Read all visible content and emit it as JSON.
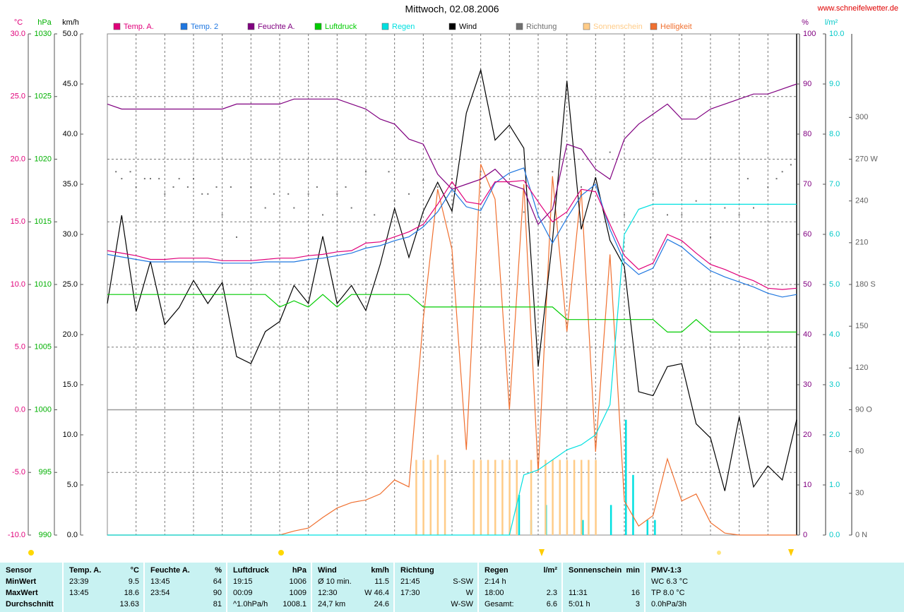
{
  "site": "www.schneifelwetter.de",
  "chart_data": {
    "type": "line",
    "title": "Mittwoch, 02.08.2006",
    "xlim": [
      0,
      24
    ],
    "xticks": [
      0,
      1,
      2,
      3,
      4,
      5,
      6,
      7,
      8,
      9,
      10,
      11,
      12,
      13,
      14,
      15,
      16,
      17,
      18,
      19,
      20,
      21,
      22,
      23,
      24
    ],
    "x": [
      0,
      0.5,
      1,
      1.5,
      2,
      2.5,
      3,
      3.5,
      4,
      4.5,
      5,
      5.5,
      6,
      6.5,
      7,
      7.5,
      8,
      8.5,
      9,
      9.5,
      10,
      10.5,
      11,
      11.5,
      12,
      12.5,
      13,
      13.5,
      14,
      14.5,
      15,
      15.5,
      16,
      16.5,
      17,
      17.5,
      18,
      18.5,
      19,
      19.5,
      20,
      20.5,
      21,
      21.5,
      22,
      22.5,
      23,
      23.5,
      24
    ],
    "axes": {
      "temp": {
        "unit": "°C",
        "side": "left",
        "color": "#e0007a",
        "ylim": [
          -10,
          30
        ],
        "grid": true,
        "refline": 0,
        "yticks": [
          {
            "value": -10,
            "label": "-10.0"
          },
          {
            "value": -5,
            "label": "-5.0"
          },
          {
            "value": 0,
            "label": "0.0"
          },
          {
            "value": 5,
            "label": "5.0"
          },
          {
            "value": 10,
            "label": "10.0"
          },
          {
            "value": 15,
            "label": "15.0"
          },
          {
            "value": 20,
            "label": "20.0"
          },
          {
            "value": 25,
            "label": "25.0"
          },
          {
            "value": 30,
            "label": "30.0"
          }
        ]
      },
      "hpa": {
        "unit": "hPa",
        "side": "left",
        "color": "#00b000",
        "ylim": [
          990,
          1030
        ],
        "yticks": [
          990,
          995,
          1000,
          1005,
          1010,
          1015,
          1020,
          1025,
          1030
        ]
      },
      "kmh": {
        "unit": "km/h",
        "side": "left",
        "color": "#000000",
        "ylim": [
          0,
          50
        ],
        "yticks": [
          {
            "value": 0,
            "label": "0.0"
          },
          {
            "value": 5,
            "label": "5.0"
          },
          {
            "value": 10,
            "label": "10.0"
          },
          {
            "value": 15,
            "label": "15.0"
          },
          {
            "value": 20,
            "label": "20.0"
          },
          {
            "value": 25,
            "label": "25.0"
          },
          {
            "value": 30,
            "label": "30.0"
          },
          {
            "value": 35,
            "label": "35.0"
          },
          {
            "value": 40,
            "label": "40.0"
          },
          {
            "value": 45,
            "label": "45.0"
          },
          {
            "value": 50,
            "label": "50.0"
          }
        ]
      },
      "pct": {
        "unit": "%",
        "side": "right",
        "color": "#800080",
        "ylim": [
          0,
          100
        ],
        "yticks": [
          0,
          10,
          20,
          30,
          40,
          50,
          60,
          70,
          80,
          90,
          100
        ]
      },
      "rain": {
        "unit": "l/m²",
        "side": "right",
        "color": "#00c8c8",
        "ylim": [
          0,
          10
        ],
        "yticks": [
          {
            "value": 0,
            "label": "0.0"
          },
          {
            "value": 1,
            "label": "1.0"
          },
          {
            "value": 2,
            "label": "2.0"
          },
          {
            "value": 3,
            "label": "3.0"
          },
          {
            "value": 4,
            "label": "4.0"
          },
          {
            "value": 5,
            "label": "5.0"
          },
          {
            "value": 6,
            "label": "6.0"
          },
          {
            "value": 7,
            "label": "7.0"
          },
          {
            "value": 8,
            "label": "8.0"
          },
          {
            "value": 9,
            "label": "9.0"
          },
          {
            "value": 10,
            "label": "10.0"
          }
        ]
      },
      "dir": {
        "side": "right",
        "color": "#606060",
        "ylim": [
          0,
          360
        ],
        "yticks": [
          {
            "value": 0,
            "label": "0  N"
          },
          30,
          60,
          {
            "value": 90,
            "label": "90  O"
          },
          120,
          150,
          {
            "value": 180,
            "label": "180 S"
          },
          210,
          240,
          {
            "value": 270,
            "label": "270 W"
          },
          300
        ]
      }
    },
    "series": [
      {
        "name": "Temp. A.",
        "kind": "line",
        "axis": "temp",
        "color": "#e0007a",
        "values": [
          12.7,
          12.5,
          12.3,
          12.0,
          12.0,
          12.1,
          12.1,
          12.1,
          11.9,
          11.9,
          11.9,
          12.0,
          12.1,
          12.1,
          12.3,
          12.4,
          12.6,
          12.7,
          13.3,
          13.4,
          13.8,
          14.2,
          14.8,
          16.4,
          18.2,
          16.6,
          16.4,
          18.2,
          18.2,
          18.3,
          16.6,
          15.0,
          15.8,
          17.6,
          17.4,
          14.8,
          12.3,
          11.2,
          11.7,
          14.0,
          13.5,
          12.5,
          11.6,
          11.2,
          10.7,
          10.3,
          9.7,
          9.6,
          9.7
        ]
      },
      {
        "name": "Temp. 2",
        "kind": "line",
        "axis": "temp",
        "color": "#1f77e0",
        "values": [
          12.4,
          12.2,
          12.0,
          11.8,
          11.8,
          11.8,
          11.8,
          11.8,
          11.7,
          11.7,
          11.7,
          11.8,
          11.8,
          11.8,
          12.0,
          12.1,
          12.3,
          12.5,
          12.9,
          13.1,
          13.5,
          13.8,
          14.6,
          15.8,
          17.6,
          16.2,
          15.9,
          18.1,
          18.9,
          19.3,
          15.5,
          13.3,
          15.3,
          17.1,
          18.0,
          14.4,
          11.8,
          10.8,
          11.3,
          13.6,
          13.0,
          12.0,
          11.1,
          10.6,
          10.2,
          9.8,
          9.3,
          9.0,
          9.2
        ]
      },
      {
        "name": "Feuchte A.",
        "kind": "line",
        "axis": "pct",
        "color": "#800080",
        "values": [
          86,
          85,
          85,
          85,
          85,
          85,
          85,
          85,
          85,
          86,
          86,
          86,
          86,
          87,
          87,
          87,
          87,
          86,
          85,
          83,
          82,
          79,
          78,
          72,
          69,
          70,
          71,
          73,
          70,
          69,
          62,
          65,
          78,
          77,
          73,
          71,
          79,
          82,
          84,
          86,
          83,
          83,
          85,
          86,
          87,
          88,
          88,
          89,
          90
        ]
      },
      {
        "name": "Luftdruck",
        "kind": "line",
        "axis": "hpa",
        "color": "#00cc00",
        "values": [
          1009.2,
          1009.2,
          1009.2,
          1009.2,
          1009.2,
          1009.2,
          1009.2,
          1009.2,
          1009.2,
          1009.2,
          1009.2,
          1009.2,
          1008.2,
          1008.7,
          1008.2,
          1009.2,
          1008.2,
          1009.2,
          1009.2,
          1009.2,
          1009.2,
          1009.2,
          1008.2,
          1008.2,
          1008.2,
          1008.2,
          1008.2,
          1008.2,
          1008.2,
          1008.2,
          1008.2,
          1008.2,
          1007.2,
          1007.2,
          1007.2,
          1007.2,
          1007.2,
          1007.2,
          1007.2,
          1006.2,
          1006.2,
          1007.2,
          1006.2,
          1006.2,
          1006.2,
          1006.2,
          1006.2,
          1006.2,
          1006.2
        ]
      },
      {
        "name": "Regen",
        "kind": "line",
        "axis": "rain",
        "color": "#00e0e0",
        "values": [
          0,
          0,
          0,
          0,
          0,
          0,
          0,
          0,
          0,
          0,
          0,
          0,
          0,
          0,
          0,
          0,
          0,
          0,
          0,
          0,
          0,
          0,
          0,
          0,
          0,
          0,
          0,
          0,
          0,
          1.2,
          1.3,
          1.5,
          1.7,
          1.8,
          2.0,
          2.6,
          6.0,
          6.5,
          6.6,
          6.6,
          6.6,
          6.6,
          6.6,
          6.6,
          6.6,
          6.6,
          6.6,
          6.6,
          6.6
        ]
      },
      {
        "name": "Wind",
        "kind": "line",
        "axis": "kmh",
        "color": "#000000",
        "values": [
          23.1,
          31.9,
          22.3,
          27.3,
          21.0,
          22.7,
          25.4,
          23.1,
          25.2,
          17.8,
          17.1,
          20.3,
          21.3,
          24.9,
          23.1,
          29.8,
          23.1,
          24.9,
          22.4,
          27.0,
          32.6,
          27.7,
          32.3,
          35.2,
          32.3,
          42.1,
          46.4,
          39.4,
          40.9,
          38.6,
          16.8,
          29.4,
          45.3,
          30.5,
          35.7,
          29.4,
          26.8,
          14.3,
          13.9,
          16.8,
          17.1,
          11.1,
          9.7,
          4.4,
          11.8,
          4.8,
          6.9,
          5.5,
          11.5
        ]
      },
      {
        "name": "Richtung",
        "kind": "dots",
        "axis": "dir",
        "color": "#707070",
        "x": [
          0.3,
          0.5,
          0.8,
          1.0,
          1.3,
          1.5,
          1.8,
          2.0,
          2.3,
          2.5,
          2.8,
          3.0,
          3.3,
          3.5,
          3.8,
          4.0,
          4.3,
          4.5,
          5.0,
          5.5,
          5.8,
          6.3,
          6.5,
          7.0,
          7.3,
          7.5,
          8.0,
          8.3,
          8.5,
          9.0,
          9.3,
          9.8,
          10.0,
          10.5,
          11.0,
          11.5,
          12.0,
          13.0,
          14.0,
          14.5,
          15.0,
          15.5,
          16.0,
          16.5,
          17.0,
          17.5,
          18.0,
          19.0,
          19.5,
          20.0,
          20.5,
          21.0,
          21.5,
          22.0,
          22.3,
          22.5,
          23.0,
          23.3,
          23.5,
          23.8
        ],
        "values": [
          261,
          256,
          261,
          250,
          256,
          256,
          256,
          245,
          250,
          256,
          250,
          256,
          245,
          245,
          250,
          230,
          250,
          214,
          250,
          235,
          245,
          245,
          235,
          245,
          250,
          230,
          245,
          250,
          235,
          261,
          230,
          261,
          240,
          245,
          255,
          250,
          256,
          261,
          240,
          232,
          261,
          261,
          265,
          250,
          256,
          275,
          230,
          245,
          230,
          230,
          240,
          214,
          235,
          230,
          256,
          235,
          250,
          256,
          261,
          266
        ]
      },
      {
        "name": "Sonnenschein",
        "kind": "bar",
        "axis": "pct",
        "color": "#ffcc88",
        "x": [
          10.75,
          11,
          11.25,
          11.5,
          11.75,
          12.75,
          13,
          13.25,
          13.5,
          13.75,
          14,
          14.25,
          14.75,
          15.25,
          15.5,
          15.75,
          16,
          16.25,
          16.5,
          16.75,
          17
        ],
        "values": [
          15,
          15,
          15,
          16,
          15,
          15,
          15,
          15,
          15,
          15,
          15,
          15,
          15,
          15,
          15,
          15,
          15,
          15,
          15,
          15,
          15
        ]
      },
      {
        "name": "Helligkeit",
        "kind": "line",
        "axis": "pct",
        "color": "#f07030",
        "values": [
          0,
          0,
          0,
          0,
          0,
          0,
          0,
          0,
          0,
          0,
          0,
          0,
          0,
          0.8,
          1.4,
          3.5,
          5.4,
          6.5,
          7,
          8.2,
          11,
          9.6,
          43,
          69,
          57,
          17,
          74,
          67,
          25,
          70,
          12.4,
          71.6,
          40.6,
          69,
          16.6,
          56,
          6.8,
          1.8,
          3.9,
          15.2,
          6.8,
          8.2,
          2.5,
          0.4,
          0,
          0,
          0,
          0,
          0
        ]
      }
    ],
    "rain_bars": {
      "axis": "rain",
      "color": "#00e0e0",
      "x": [
        14.33,
        14.75,
        15.27,
        16.55,
        17.53,
        18.05,
        18.3,
        18.8,
        19.06
      ],
      "values": [
        0.8,
        0.3,
        0.6,
        0.3,
        0.6,
        2.3,
        1.2,
        0.3,
        0.3
      ]
    }
  },
  "table": {
    "columns": [
      {
        "name": "Sensor"
      },
      {
        "name": "Temp. A.",
        "unit": "°C"
      },
      {
        "name": "Feuchte A.",
        "unit": "%"
      },
      {
        "name": "Luftdruck",
        "unit": "hPa"
      },
      {
        "name": "Wind",
        "unit": "km/h"
      },
      {
        "name": "Richtung"
      },
      {
        "name": "Regen",
        "unit": "l/m²"
      },
      {
        "name": "Sonnenschein",
        "unit": "min"
      },
      {
        "name": "PMV-1:3"
      }
    ],
    "rows": [
      {
        "name": "MinWert",
        "cells": [
          {
            "label": "23:39",
            "value": "9.5"
          },
          {
            "label": "13:45",
            "value": "64"
          },
          {
            "label": "19:15",
            "value": "1006"
          },
          {
            "label": "Ø 10 min.",
            "value": "11.5"
          },
          {
            "label": "21:45",
            "value": "S-SW"
          },
          {
            "label": "2:14 h"
          },
          {},
          {
            "label": "WC 6.3 °C"
          }
        ]
      },
      {
        "name": "MaxWert",
        "cells": [
          {
            "label": "13:45",
            "value": "18.6"
          },
          {
            "label": "23:54",
            "value": "90"
          },
          {
            "label": "00:09",
            "value": "1009"
          },
          {
            "label": "12:30",
            "value": "W 46.4"
          },
          {
            "label": "17:30",
            "value": "W"
          },
          {
            "label": "18:00",
            "value": "2.3"
          },
          {
            "label": "11:31",
            "value": "16"
          },
          {
            "label": "TP 8.0 °C"
          }
        ]
      },
      {
        "name": "Durchschnitt",
        "cells": [
          {
            "value": "13.63"
          },
          {
            "value": "81"
          },
          {
            "label": "^1.0hPa/h",
            "value": "1008.1"
          },
          {
            "label": "24,7 km",
            "value": "24.6"
          },
          {
            "value": "W-SW"
          },
          {
            "label": "Gesamt:",
            "value": "6.6"
          },
          {
            "label": "5:01 h",
            "value": "3"
          },
          {
            "label": "0.0hPa/3h"
          }
        ]
      }
    ]
  }
}
